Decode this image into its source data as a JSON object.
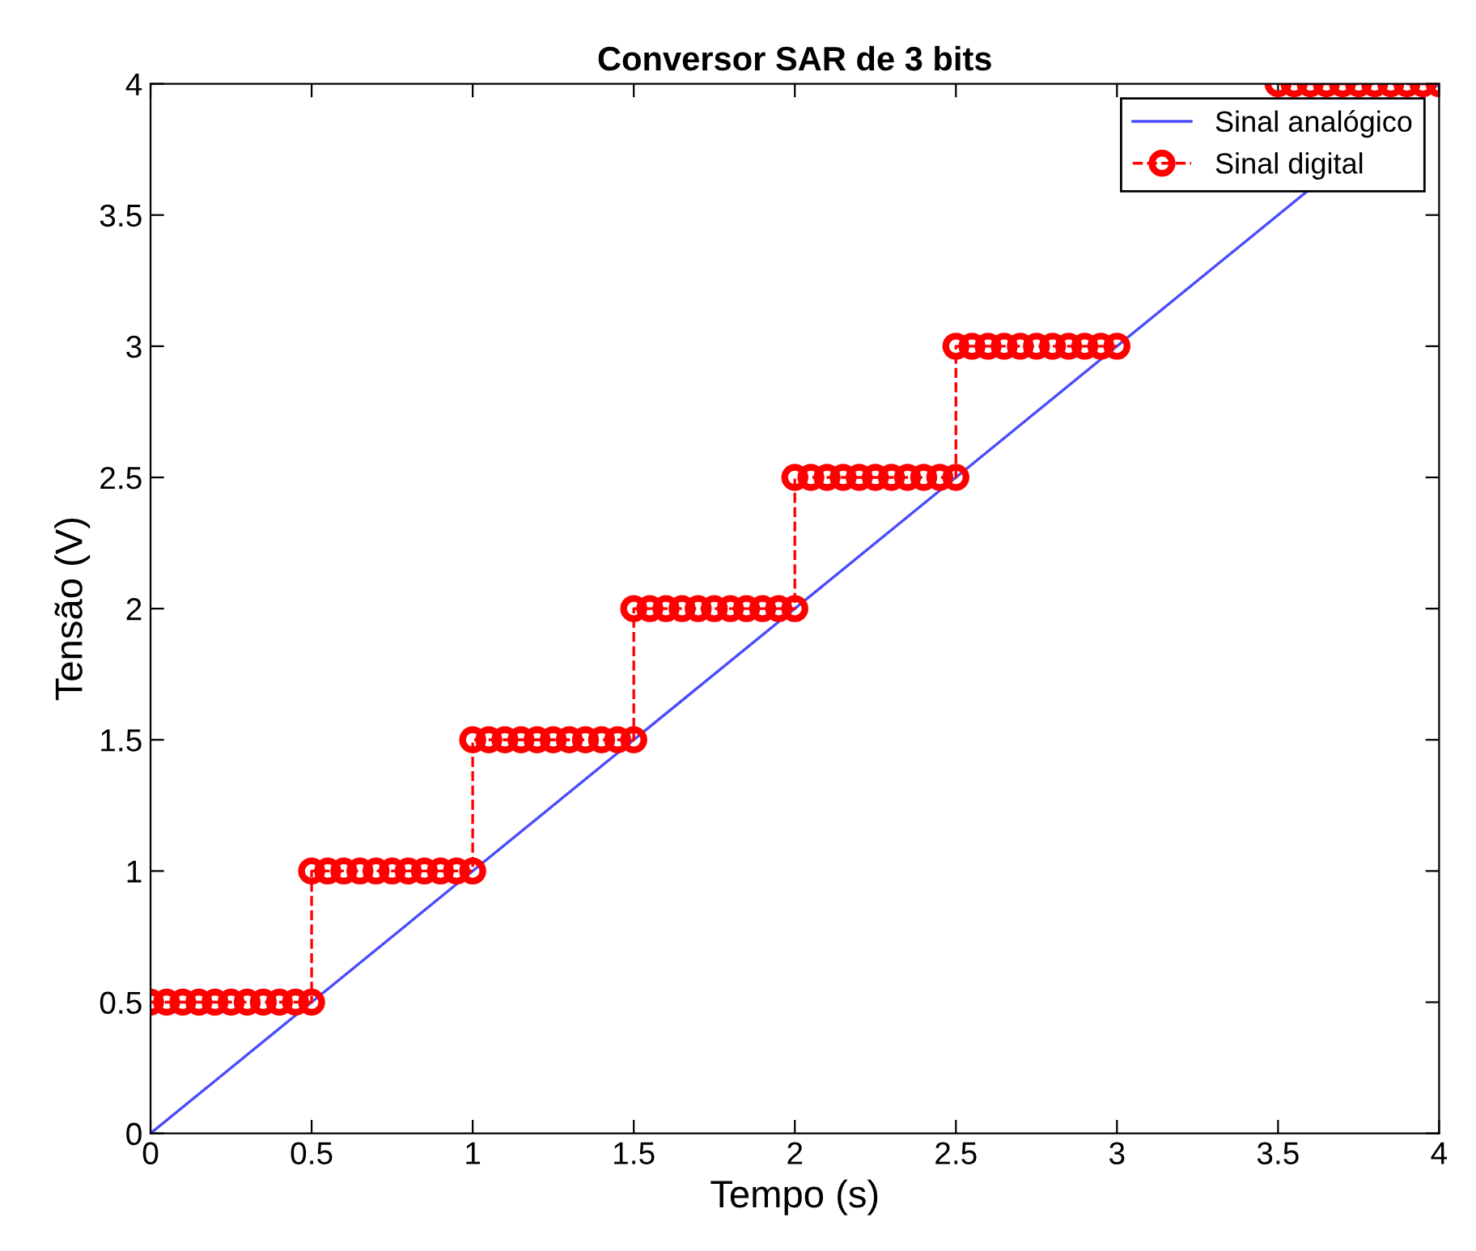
{
  "chart_data": {
    "type": "line",
    "title": "Conversor SAR de 3 bits",
    "xlabel": "Tempo (s)",
    "ylabel": "Tensão (V)",
    "xlim": [
      0,
      4
    ],
    "ylim": [
      0,
      4
    ],
    "xticks": [
      0,
      0.5,
      1,
      1.5,
      2,
      2.5,
      3,
      3.5,
      4
    ],
    "yticks": [
      0,
      0.5,
      1,
      1.5,
      2,
      2.5,
      3,
      3.5,
      4
    ],
    "grid": false,
    "legend": "top right",
    "series": [
      {
        "name": "Sinal analógico",
        "color": "#4a4aff",
        "marker": "none",
        "line_style": "solid",
        "x": [
          0,
          4
        ],
        "values": [
          0,
          4
        ]
      },
      {
        "name": "Sinal digital",
        "color": "#ff0000",
        "marker": "circle",
        "line_style": "dashed",
        "x": [
          0,
          0.05,
          0.1,
          0.15,
          0.2,
          0.25,
          0.3,
          0.35,
          0.4,
          0.45,
          0.5,
          0.5,
          0.55,
          0.6,
          0.65,
          0.7,
          0.75,
          0.8,
          0.85,
          0.9,
          0.95,
          1.0,
          1.0,
          1.05,
          1.1,
          1.15,
          1.2,
          1.25,
          1.3,
          1.35,
          1.4,
          1.45,
          1.5,
          1.5,
          1.55,
          1.6,
          1.65,
          1.7,
          1.75,
          1.8,
          1.85,
          1.9,
          1.95,
          2.0,
          2.0,
          2.05,
          2.1,
          2.15,
          2.2,
          2.25,
          2.3,
          2.35,
          2.4,
          2.45,
          2.5,
          2.5,
          2.55,
          2.6,
          2.65,
          2.7,
          2.75,
          2.8,
          2.85,
          2.9,
          2.95,
          3.0
        ],
        "values": [
          0.5,
          0.5,
          0.5,
          0.5,
          0.5,
          0.5,
          0.5,
          0.5,
          0.5,
          0.5,
          0.5,
          1,
          1,
          1,
          1,
          1,
          1,
          1,
          1,
          1,
          1,
          1,
          1.5,
          1.5,
          1.5,
          1.5,
          1.5,
          1.5,
          1.5,
          1.5,
          1.5,
          1.5,
          1.5,
          2,
          2,
          2,
          2,
          2,
          2,
          2,
          2,
          2,
          2,
          2,
          2.5,
          2.5,
          2.5,
          2.5,
          2.5,
          2.5,
          2.5,
          2.5,
          2.5,
          2.5,
          2.5,
          3,
          3,
          3,
          3,
          3,
          3,
          3,
          3,
          3,
          3,
          3
        ]
      },
      {
        "color": "#ff0000",
        "marker": "circle",
        "line_style": "dashed",
        "x": [
          3.5,
          3.55,
          3.6,
          3.65,
          3.7,
          3.75,
          3.8,
          3.85,
          3.9,
          3.95,
          4.0
        ],
        "values": [
          4,
          4,
          4,
          4,
          4,
          4,
          4,
          4,
          4,
          4,
          4
        ]
      }
    ]
  }
}
